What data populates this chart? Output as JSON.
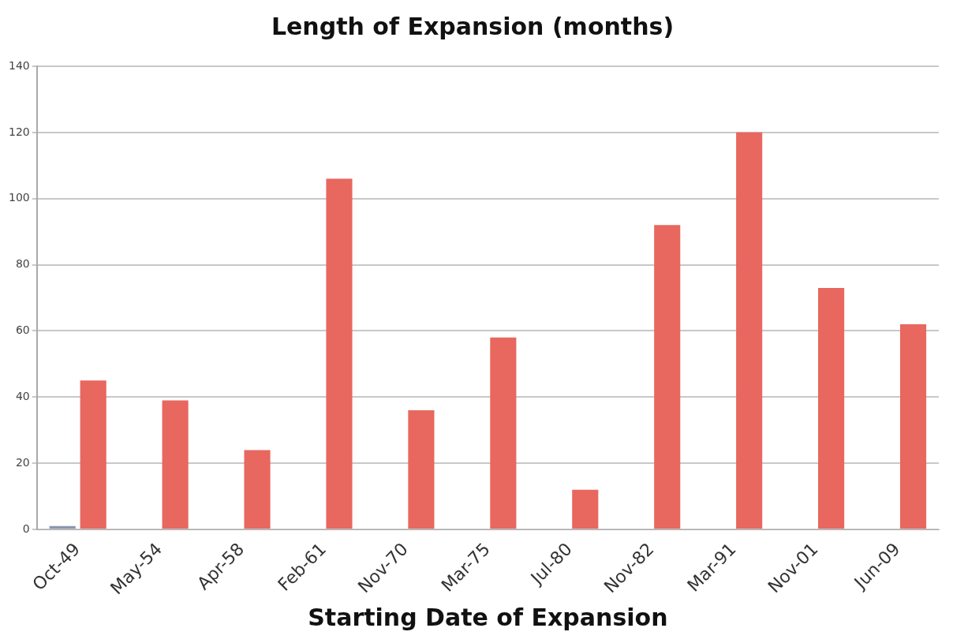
{
  "chart_data": {
    "type": "bar",
    "title": "Length of Expansion (months)",
    "xlabel": "Starting Date of Expansion",
    "categories": [
      "Oct-49",
      "May-54",
      "Apr-58",
      "Feb-61",
      "Nov-70",
      "Mar-75",
      "Jul-80",
      "Nov-82",
      "Mar-91",
      "Nov-01",
      "Jun-09"
    ],
    "series": [
      {
        "color": "#8a97ad",
        "values": [
          1,
          null,
          null,
          null,
          null,
          null,
          null,
          null,
          null,
          null,
          null
        ]
      },
      {
        "color": "#e8675f",
        "values": [
          45,
          39,
          24,
          106,
          36,
          58,
          12,
          92,
          120,
          73,
          62
        ]
      }
    ],
    "ylim": [
      0,
      140
    ],
    "yticks": [
      0,
      20,
      40,
      60,
      80,
      100,
      120,
      140
    ],
    "grid": "y",
    "legend": false
  }
}
